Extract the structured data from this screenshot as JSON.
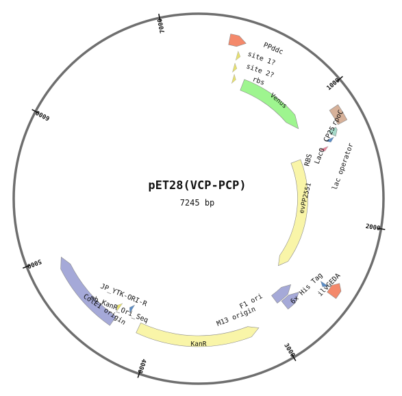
{
  "plasmid": {
    "name": "pET28(VCP-PCP)",
    "length_label": "7245 bp",
    "total_bp": 7245
  },
  "ticks": [
    {
      "label": "1000",
      "bp": 1000
    },
    {
      "label": "2000",
      "bp": 2000
    },
    {
      "label": "3000",
      "bp": 3000
    },
    {
      "label": "4000",
      "bp": 4000
    },
    {
      "label": "5000",
      "bp": 5000
    },
    {
      "label": "6000",
      "bp": 6000
    },
    {
      "label": "7000",
      "bp": 7000
    }
  ],
  "labels": {
    "PPddc": "PPddc",
    "site1": "site 1?",
    "site2": "site 2?",
    "rbs": "rbs",
    "venus": "Venus",
    "rpoC": "rpoC",
    "cp25": "CP25",
    "laco": "LacO",
    "lac_operator": "lac operator",
    "RBS": "RBS",
    "evpp": "evPP2551",
    "ilvgeda": "ilvGEDA",
    "his": "6x His Tag",
    "f1": "F1 ori",
    "m13": "M13 origin",
    "kanr": "KanR",
    "jp": "JP_YTK-ORI-R",
    "mb": "mb_KanR_Ori_Seq",
    "cole1": "ColE1 origin"
  },
  "colors": {
    "backbone": "#6e6e6e",
    "promoter": "#f4896b",
    "cds_green": "#9ef58f",
    "cds_yellow": "#f9f5a8",
    "origin": "#a5a9d8",
    "terminator": "#d7b199",
    "primer_yellow": "#e6e070",
    "rbs": "#e9829a",
    "operator": "#5b8cc4",
    "cp25": "#a6dac9"
  }
}
